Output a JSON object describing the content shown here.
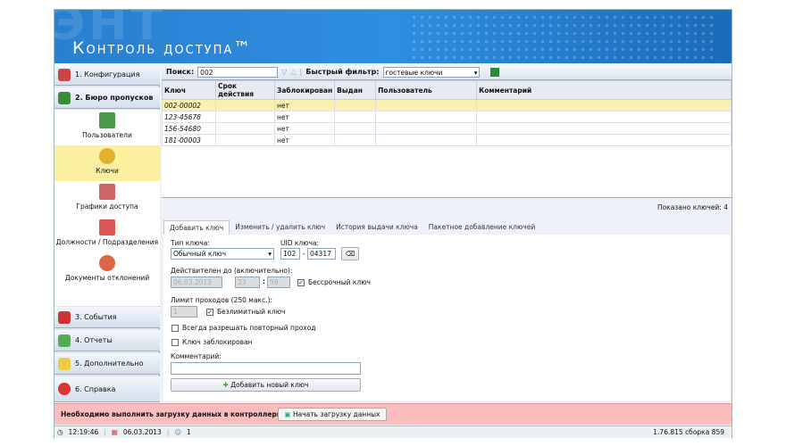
{
  "header": {
    "title": "Контроль доступа™",
    "ghost": "ЭНТ"
  },
  "sidebar": {
    "top": [
      {
        "label": "1. Конфигурация"
      },
      {
        "label": "2. Бюро пропусков"
      }
    ],
    "sub": [
      {
        "label": "Пользователи"
      },
      {
        "label": "Ключи"
      },
      {
        "label": "Графики доступа"
      },
      {
        "label": "Должности / Подразделения"
      },
      {
        "label": "Документы отклонений"
      }
    ],
    "bottom": [
      {
        "label": "3. События"
      },
      {
        "label": "4. Отчеты"
      },
      {
        "label": "5. Дополнительно"
      },
      {
        "label": "6. Справка"
      }
    ]
  },
  "toolbar": {
    "search_label": "Поиск:",
    "search_value": "002",
    "filter_label": "Быстрый фильтр:",
    "filter_value": "гостевые ключи"
  },
  "table": {
    "columns": [
      "Ключ",
      "Срок действия",
      "Заблокирован",
      "Выдан",
      "Пользователь",
      "Комментарий"
    ],
    "rows": [
      [
        "002-00002",
        "",
        "нет",
        "",
        "",
        ""
      ],
      [
        "123-45678",
        "",
        "нет",
        "",
        "",
        ""
      ],
      [
        "156-54680",
        "",
        "нет",
        "",
        "",
        ""
      ],
      [
        "181-00003",
        "",
        "нет",
        "",
        "",
        ""
      ]
    ]
  },
  "shown": "Показано ключей: 4",
  "tabs": [
    "Добавить ключ",
    "Изменить / удалить ключ",
    "История выдачи ключа",
    "Пакетное добавление ключей"
  ],
  "form": {
    "type_label": "Тип ключа:",
    "type_value": "Обычный ключ",
    "uid_label": "UID ключа:",
    "uid1": "102",
    "uid_sep": "-",
    "uid2": "04317",
    "valid_label": "Действителен до (включительно):",
    "date": "06.03.2013",
    "hour": "23",
    "minute": "59",
    "unlimited_time": "Бессрочный ключ",
    "limit_label": "Лимит проходов (250 макс.):",
    "limit": "1",
    "unlimited_pass": "Безлимитный ключ",
    "repeat": "Всегда разрешать повторный проход",
    "blocked": "Ключ заблокирован",
    "comment_label": "Комментарий:",
    "comment": "",
    "add": "Добавить новый ключ"
  },
  "notice": {
    "text": "Необходимо выполнить загрузку данных в контроллеры.",
    "button": "Начать загрузку данных"
  },
  "statusbar": {
    "time": "12:19:46",
    "date": "06.03.2013",
    "users": "1",
    "version": "1.76.815 сборка 859"
  }
}
